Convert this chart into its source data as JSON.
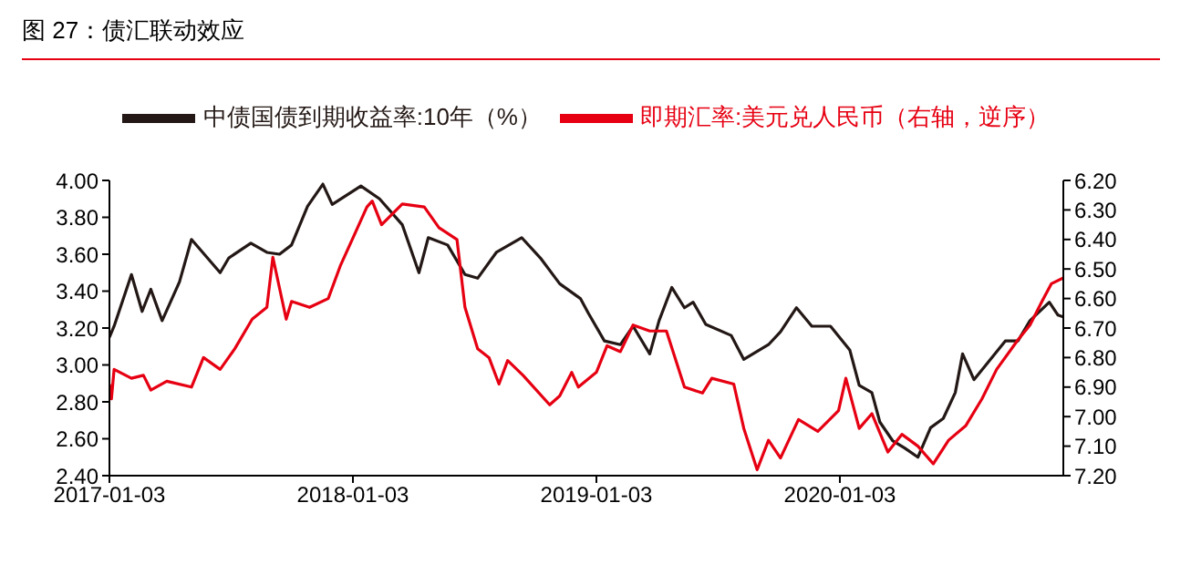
{
  "chart_data": {
    "type": "line",
    "title": "图 27：债汇联动效应",
    "x": [
      "2017-01-03",
      "2017-01-10",
      "2017-02-05",
      "2017-02-21",
      "2017-03-06",
      "2017-03-23",
      "2017-04-18",
      "2017-05-06",
      "2017-06-18",
      "2017-07-01",
      "2017-08-03",
      "2017-08-27",
      "2017-09-15",
      "2017-10-03",
      "2017-10-27",
      "2017-11-19",
      "2017-12-03",
      "2018-01-15",
      "2018-02-12",
      "2018-03-18",
      "2018-04-12",
      "2018-04-26",
      "2018-05-25",
      "2018-06-20",
      "2018-07-09",
      "2018-08-06",
      "2018-09-13",
      "2018-10-11",
      "2018-11-09",
      "2018-12-10",
      "2018-12-22",
      "2019-01-15",
      "2019-02-08",
      "2019-02-27",
      "2019-03-24",
      "2019-04-07",
      "2019-04-26",
      "2019-05-15",
      "2019-05-28",
      "2019-06-16",
      "2019-07-24",
      "2019-08-12",
      "2019-09-18",
      "2019-10-06",
      "2019-10-30",
      "2019-11-22",
      "2019-12-20",
      "2020-01-18",
      "2020-02-01",
      "2020-02-20",
      "2020-03-03",
      "2020-03-22",
      "2020-04-09",
      "2020-04-29",
      "2020-05-18",
      "2020-06-06",
      "2020-06-24",
      "2020-07-05",
      "2020-07-22",
      "2020-08-09",
      "2020-09-07",
      "2020-09-26",
      "2020-10-14",
      "2020-11-12",
      "2020-11-25",
      "2020-12-03"
    ],
    "series": [
      {
        "name": "中债国债到期收益率:10年（%）",
        "color": "#231815",
        "values": [
          3.15,
          3.21,
          3.49,
          3.29,
          3.41,
          3.24,
          3.45,
          3.68,
          3.5,
          3.58,
          3.66,
          3.61,
          3.6,
          3.65,
          3.86,
          3.98,
          3.87,
          3.97,
          3.9,
          3.76,
          3.5,
          3.69,
          3.65,
          3.49,
          3.47,
          3.61,
          3.69,
          3.58,
          3.44,
          3.36,
          3.28,
          3.13,
          3.11,
          3.21,
          3.06,
          3.24,
          3.42,
          3.31,
          3.34,
          3.22,
          3.16,
          3.03,
          3.11,
          3.18,
          3.31,
          3.21,
          3.21,
          3.08,
          2.89,
          2.85,
          2.69,
          2.59,
          2.55,
          2.5,
          2.66,
          2.71,
          2.85,
          3.06,
          2.92,
          3.0,
          3.13,
          3.13,
          3.24,
          3.34,
          3.27,
          3.26
        ]
      },
      {
        "name": "即期汇率:美元兑人民币（右轴，逆序）",
        "color": "#e60012",
        "axis": "y2",
        "x": [
          "2017-01-03",
          "2017-01-06",
          "2017-01-10",
          "2017-02-05",
          "2017-02-23",
          "2017-03-06",
          "2017-03-30",
          "2017-05-06",
          "2017-05-24",
          "2017-06-18",
          "2017-07-10",
          "2017-08-05",
          "2017-08-27",
          "2017-09-05",
          "2017-09-25",
          "2017-10-03",
          "2017-10-30",
          "2017-11-27",
          "2017-12-15",
          "2018-01-06",
          "2018-01-24",
          "2018-02-01",
          "2018-02-15",
          "2018-03-18",
          "2018-04-20",
          "2018-05-12",
          "2018-06-08",
          "2018-06-20",
          "2018-07-09",
          "2018-07-26",
          "2018-08-10",
          "2018-08-23",
          "2018-09-15",
          "2018-10-25",
          "2018-11-09",
          "2018-11-27",
          "2018-12-07",
          "2019-01-03",
          "2019-01-19",
          "2019-02-08",
          "2019-02-27",
          "2019-03-24",
          "2019-04-18",
          "2019-05-15",
          "2019-06-11",
          "2019-06-25",
          "2019-07-28",
          "2019-08-12",
          "2019-09-01",
          "2019-09-18",
          "2019-10-06",
          "2019-11-02",
          "2019-12-01",
          "2020-01-01",
          "2020-01-12",
          "2020-02-01",
          "2020-02-20",
          "2020-03-15",
          "2020-04-05",
          "2020-04-29",
          "2020-05-22",
          "2020-06-14",
          "2020-07-10",
          "2020-08-03",
          "2020-08-25",
          "2020-09-26",
          "2020-10-14",
          "2020-11-01",
          "2020-11-15",
          "2020-12-03"
        ],
        "values": [
          6.89,
          6.94,
          6.84,
          6.87,
          6.86,
          6.91,
          6.88,
          6.9,
          6.8,
          6.84,
          6.77,
          6.67,
          6.63,
          6.46,
          6.67,
          6.61,
          6.63,
          6.6,
          6.49,
          6.38,
          6.29,
          6.27,
          6.35,
          6.28,
          6.29,
          6.36,
          6.4,
          6.63,
          6.77,
          6.8,
          6.89,
          6.81,
          6.86,
          6.96,
          6.93,
          6.85,
          6.9,
          6.85,
          6.76,
          6.78,
          6.69,
          6.71,
          6.71,
          6.9,
          6.92,
          6.87,
          6.89,
          7.04,
          7.18,
          7.08,
          7.14,
          7.01,
          7.05,
          6.98,
          6.87,
          7.04,
          6.99,
          7.12,
          7.06,
          7.1,
          7.16,
          7.08,
          7.03,
          6.94,
          6.84,
          6.74,
          6.69,
          6.61,
          6.55,
          6.53
        ]
      }
    ],
    "xlim": [
      "2017-01-03",
      "2020-12-03"
    ],
    "xticks": [
      "2017-01-03",
      "2018-01-03",
      "2019-01-03",
      "2020-01-03"
    ],
    "ylim": [
      2.4,
      4.0
    ],
    "yticks": [
      {
        "value": 2.4,
        "label": "2.40"
      },
      {
        "value": 2.6,
        "label": "2.60"
      },
      {
        "value": 2.8,
        "label": "2.80"
      },
      {
        "value": 3.0,
        "label": "3.00"
      },
      {
        "value": 3.2,
        "label": "3.20"
      },
      {
        "value": 3.4,
        "label": "3.40"
      },
      {
        "value": 3.6,
        "label": "3.60"
      },
      {
        "value": 3.8,
        "label": "3.80"
      },
      {
        "value": 4.0,
        "label": "4.00"
      }
    ],
    "y2lim": [
      7.2,
      6.2
    ],
    "y2ticks": [
      {
        "value": 6.2,
        "label": "6.20"
      },
      {
        "value": 6.3,
        "label": "6.30"
      },
      {
        "value": 6.4,
        "label": "6.40"
      },
      {
        "value": 6.5,
        "label": "6.50"
      },
      {
        "value": 6.6,
        "label": "6.60"
      },
      {
        "value": 6.7,
        "label": "6.70"
      },
      {
        "value": 6.8,
        "label": "6.80"
      },
      {
        "value": 6.9,
        "label": "6.90"
      },
      {
        "value": 7.0,
        "label": "7.00"
      },
      {
        "value": 7.1,
        "label": "7.10"
      },
      {
        "value": 7.2,
        "label": "7.20"
      }
    ],
    "legend": "top",
    "grid": false,
    "marker": "none",
    "line_style": "solid"
  }
}
